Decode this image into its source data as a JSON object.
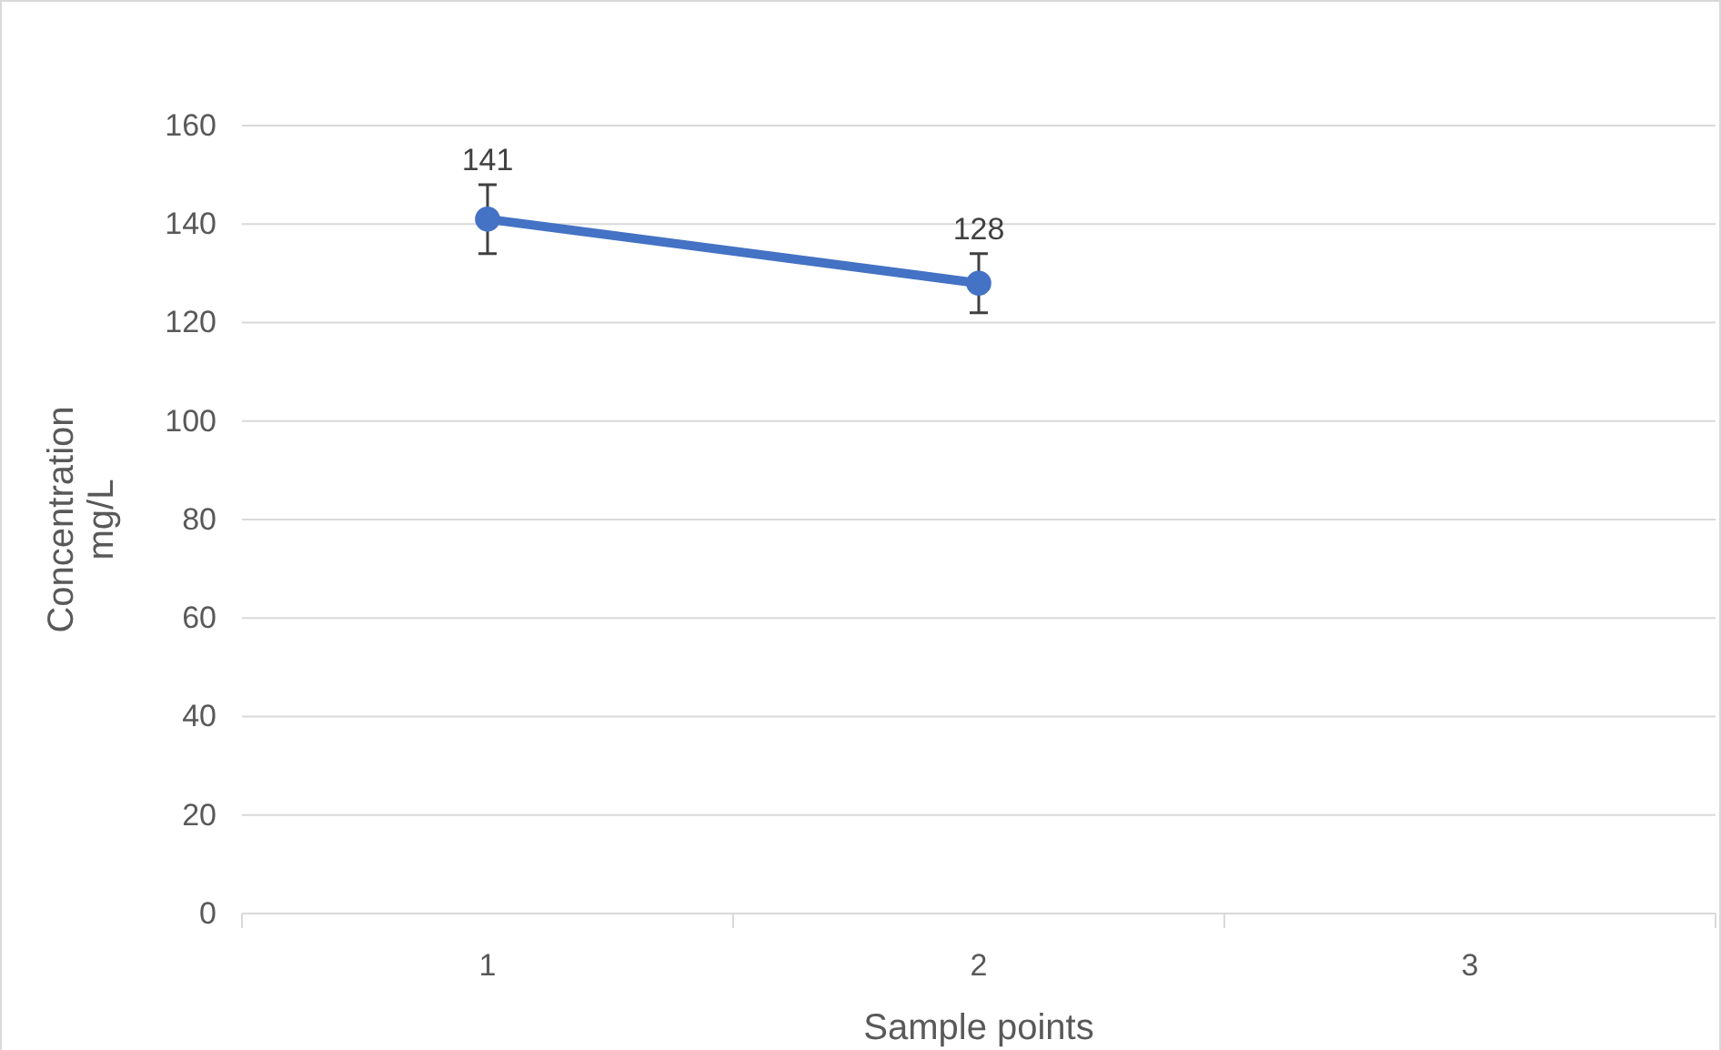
{
  "chart_data": {
    "type": "line",
    "categories": [
      "1",
      "2",
      "3"
    ],
    "series": [
      {
        "color": "#4472c4",
        "values": [
          141,
          128,
          null
        ],
        "errors": [
          7,
          6,
          null
        ]
      }
    ],
    "xlabel": "Sample points",
    "ylabel": "Concentration mg/L",
    "ylim": [
      0,
      160
    ],
    "yticks": [
      0,
      20,
      40,
      60,
      80,
      100,
      120,
      140,
      160
    ],
    "grid": "y",
    "marker": "circle",
    "line_style": "solid",
    "data_labels": true
  }
}
